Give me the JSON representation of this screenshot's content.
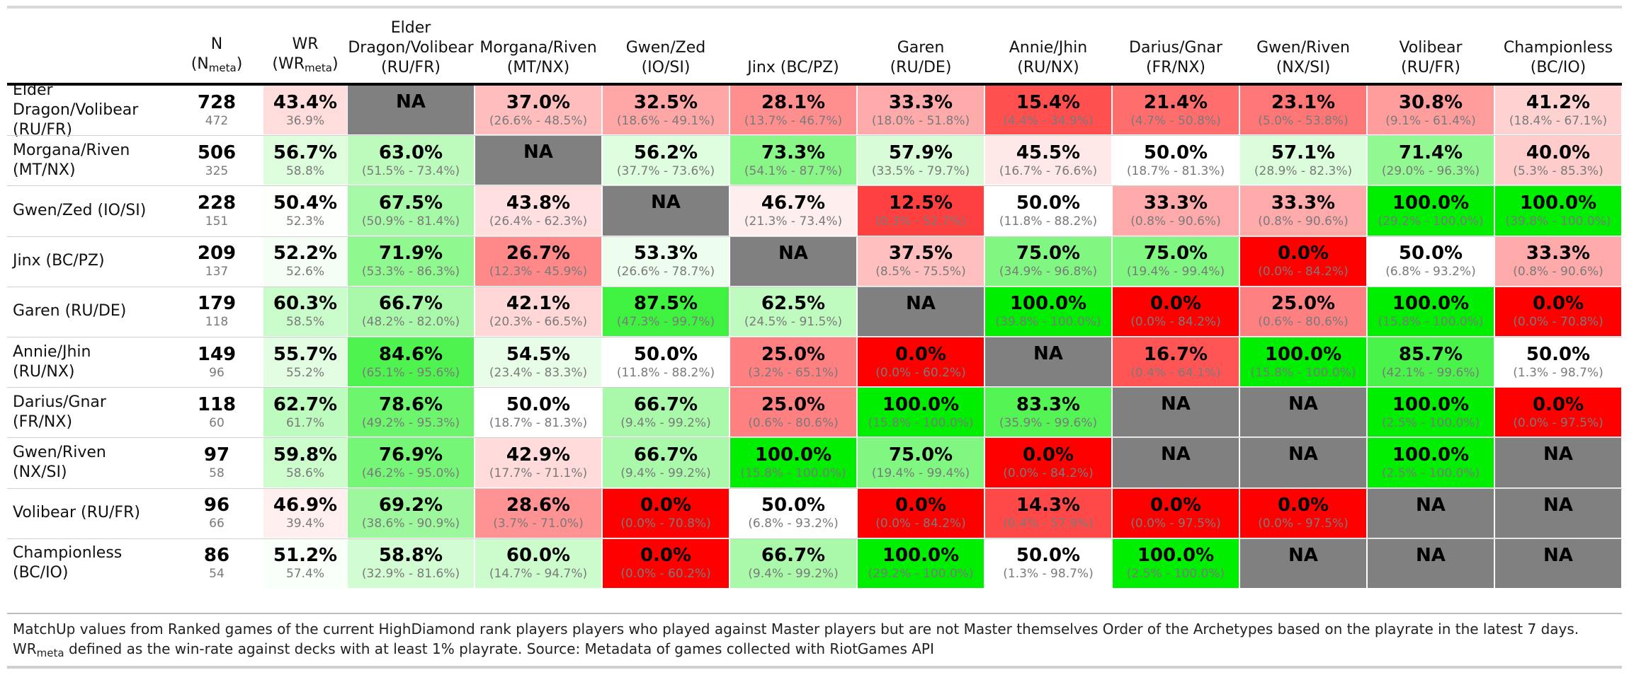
{
  "chart_data": {
    "type": "table",
    "columns": {
      "n": {
        "main": "N",
        "sub_base": "(N",
        "sub_sub": "meta",
        "sub_close": ")"
      },
      "wr": {
        "main": "WR",
        "sub_base": "(WR",
        "sub_sub": "meta",
        "sub_close": ")"
      },
      "opponents": [
        {
          "l1": "Elder",
          "l2": "Dragon/Volibear",
          "l3": "(RU/FR)"
        },
        {
          "l1": "",
          "l2": "Morgana/Riven",
          "l3": "(MT/NX)"
        },
        {
          "l1": "",
          "l2": "Gwen/Zed",
          "l3": "(IO/SI)"
        },
        {
          "l1": "",
          "l2": "",
          "l3": "Jinx (BC/PZ)"
        },
        {
          "l1": "",
          "l2": "Garen",
          "l3": "(RU/DE)"
        },
        {
          "l1": "",
          "l2": "Annie/Jhin",
          "l3": "(RU/NX)"
        },
        {
          "l1": "",
          "l2": "Darius/Gnar",
          "l3": "(FR/NX)"
        },
        {
          "l1": "",
          "l2": "Gwen/Riven",
          "l3": "(NX/SI)"
        },
        {
          "l1": "",
          "l2": "Volibear",
          "l3": "(RU/FR)"
        },
        {
          "l1": "",
          "l2": "Championless",
          "l3": "(BC/IO)"
        }
      ]
    },
    "rows": [
      {
        "label": [
          "Elder",
          "Dragon/Volibear",
          "(RU/FR)"
        ],
        "n": 728,
        "n_meta": 472,
        "wr": "43.4%",
        "wr_meta": "36.9%",
        "wr_value": 43.4,
        "cells": [
          {
            "value": "NA",
            "ci": ""
          },
          {
            "value": "37.0%",
            "ci": "(26.6% - 48.5%)",
            "num": 37.0
          },
          {
            "value": "32.5%",
            "ci": "(18.6% - 49.1%)",
            "num": 32.5
          },
          {
            "value": "28.1%",
            "ci": "(13.7% - 46.7%)",
            "num": 28.1
          },
          {
            "value": "33.3%",
            "ci": "(18.0% - 51.8%)",
            "num": 33.3
          },
          {
            "value": "15.4%",
            "ci": "(4.4% - 34.9%)",
            "num": 15.4
          },
          {
            "value": "21.4%",
            "ci": "(4.7% - 50.8%)",
            "num": 21.4
          },
          {
            "value": "23.1%",
            "ci": "(5.0% - 53.8%)",
            "num": 23.1
          },
          {
            "value": "30.8%",
            "ci": "(9.1% - 61.4%)",
            "num": 30.8
          },
          {
            "value": "41.2%",
            "ci": "(18.4% - 67.1%)",
            "num": 41.2
          }
        ]
      },
      {
        "label": [
          "Morgana/Riven",
          "(MT/NX)"
        ],
        "n": 506,
        "n_meta": 325,
        "wr": "56.7%",
        "wr_meta": "58.8%",
        "wr_value": 56.7,
        "cells": [
          {
            "value": "63.0%",
            "ci": "(51.5% - 73.4%)",
            "num": 63.0
          },
          {
            "value": "NA",
            "ci": ""
          },
          {
            "value": "56.2%",
            "ci": "(37.7% - 73.6%)",
            "num": 56.2
          },
          {
            "value": "73.3%",
            "ci": "(54.1% - 87.7%)",
            "num": 73.3
          },
          {
            "value": "57.9%",
            "ci": "(33.5% - 79.7%)",
            "num": 57.9
          },
          {
            "value": "45.5%",
            "ci": "(16.7% - 76.6%)",
            "num": 45.5
          },
          {
            "value": "50.0%",
            "ci": "(18.7% - 81.3%)",
            "num": 50.0
          },
          {
            "value": "57.1%",
            "ci": "(28.9% - 82.3%)",
            "num": 57.1
          },
          {
            "value": "71.4%",
            "ci": "(29.0% - 96.3%)",
            "num": 71.4
          },
          {
            "value": "40.0%",
            "ci": "(5.3% - 85.3%)",
            "num": 40.0
          }
        ]
      },
      {
        "label": [
          "Gwen/Zed (IO/SI)"
        ],
        "n": 228,
        "n_meta": 151,
        "wr": "50.4%",
        "wr_meta": "52.3%",
        "wr_value": 50.4,
        "cells": [
          {
            "value": "67.5%",
            "ci": "(50.9% - 81.4%)",
            "num": 67.5
          },
          {
            "value": "43.8%",
            "ci": "(26.4% - 62.3%)",
            "num": 43.8
          },
          {
            "value": "NA",
            "ci": ""
          },
          {
            "value": "46.7%",
            "ci": "(21.3% - 73.4%)",
            "num": 46.7
          },
          {
            "value": "12.5%",
            "ci": "(0.3% - 52.7%)",
            "num": 12.5
          },
          {
            "value": "50.0%",
            "ci": "(11.8% - 88.2%)",
            "num": 50.0
          },
          {
            "value": "33.3%",
            "ci": "(0.8% - 90.6%)",
            "num": 33.3
          },
          {
            "value": "33.3%",
            "ci": "(0.8% - 90.6%)",
            "num": 33.3
          },
          {
            "value": "100.0%",
            "ci": "(29.2% - 100.0%)",
            "num": 100.0
          },
          {
            "value": "100.0%",
            "ci": "(39.8% - 100.0%)",
            "num": 100.0
          }
        ]
      },
      {
        "label": [
          "Jinx (BC/PZ)"
        ],
        "n": 209,
        "n_meta": 137,
        "wr": "52.2%",
        "wr_meta": "52.6%",
        "wr_value": 52.2,
        "cells": [
          {
            "value": "71.9%",
            "ci": "(53.3% - 86.3%)",
            "num": 71.9
          },
          {
            "value": "26.7%",
            "ci": "(12.3% - 45.9%)",
            "num": 26.7
          },
          {
            "value": "53.3%",
            "ci": "(26.6% - 78.7%)",
            "num": 53.3
          },
          {
            "value": "NA",
            "ci": ""
          },
          {
            "value": "37.5%",
            "ci": "(8.5% - 75.5%)",
            "num": 37.5
          },
          {
            "value": "75.0%",
            "ci": "(34.9% - 96.8%)",
            "num": 75.0
          },
          {
            "value": "75.0%",
            "ci": "(19.4% - 99.4%)",
            "num": 75.0
          },
          {
            "value": "0.0%",
            "ci": "(0.0% - 84.2%)",
            "num": 0.0
          },
          {
            "value": "50.0%",
            "ci": "(6.8% - 93.2%)",
            "num": 50.0
          },
          {
            "value": "33.3%",
            "ci": "(0.8% - 90.6%)",
            "num": 33.3
          }
        ]
      },
      {
        "label": [
          "Garen (RU/DE)"
        ],
        "n": 179,
        "n_meta": 118,
        "wr": "60.3%",
        "wr_meta": "58.5%",
        "wr_value": 60.3,
        "cells": [
          {
            "value": "66.7%",
            "ci": "(48.2% - 82.0%)",
            "num": 66.7
          },
          {
            "value": "42.1%",
            "ci": "(20.3% - 66.5%)",
            "num": 42.1
          },
          {
            "value": "87.5%",
            "ci": "(47.3% - 99.7%)",
            "num": 87.5
          },
          {
            "value": "62.5%",
            "ci": "(24.5% - 91.5%)",
            "num": 62.5
          },
          {
            "value": "NA",
            "ci": ""
          },
          {
            "value": "100.0%",
            "ci": "(39.8% - 100.0%)",
            "num": 100.0
          },
          {
            "value": "0.0%",
            "ci": "(0.0% - 84.2%)",
            "num": 0.0
          },
          {
            "value": "25.0%",
            "ci": "(0.6% - 80.6%)",
            "num": 25.0
          },
          {
            "value": "100.0%",
            "ci": "(15.8% - 100.0%)",
            "num": 100.0
          },
          {
            "value": "0.0%",
            "ci": "(0.0% - 70.8%)",
            "num": 0.0
          }
        ]
      },
      {
        "label": [
          "Annie/Jhin",
          "(RU/NX)"
        ],
        "n": 149,
        "n_meta": 96,
        "wr": "55.7%",
        "wr_meta": "55.2%",
        "wr_value": 55.7,
        "cells": [
          {
            "value": "84.6%",
            "ci": "(65.1% - 95.6%)",
            "num": 84.6
          },
          {
            "value": "54.5%",
            "ci": "(23.4% - 83.3%)",
            "num": 54.5
          },
          {
            "value": "50.0%",
            "ci": "(11.8% - 88.2%)",
            "num": 50.0
          },
          {
            "value": "25.0%",
            "ci": "(3.2% - 65.1%)",
            "num": 25.0
          },
          {
            "value": "0.0%",
            "ci": "(0.0% - 60.2%)",
            "num": 0.0
          },
          {
            "value": "NA",
            "ci": ""
          },
          {
            "value": "16.7%",
            "ci": "(0.4% - 64.1%)",
            "num": 16.7
          },
          {
            "value": "100.0%",
            "ci": "(15.8% - 100.0%)",
            "num": 100.0
          },
          {
            "value": "85.7%",
            "ci": "(42.1% - 99.6%)",
            "num": 85.7
          },
          {
            "value": "50.0%",
            "ci": "(1.3% - 98.7%)",
            "num": 50.0
          }
        ]
      },
      {
        "label": [
          "Darius/Gnar",
          "(FR/NX)"
        ],
        "n": 118,
        "n_meta": 60,
        "wr": "62.7%",
        "wr_meta": "61.7%",
        "wr_value": 62.7,
        "cells": [
          {
            "value": "78.6%",
            "ci": "(49.2% - 95.3%)",
            "num": 78.6
          },
          {
            "value": "50.0%",
            "ci": "(18.7% - 81.3%)",
            "num": 50.0
          },
          {
            "value": "66.7%",
            "ci": "(9.4% - 99.2%)",
            "num": 66.7
          },
          {
            "value": "25.0%",
            "ci": "(0.6% - 80.6%)",
            "num": 25.0
          },
          {
            "value": "100.0%",
            "ci": "(15.8% - 100.0%)",
            "num": 100.0
          },
          {
            "value": "83.3%",
            "ci": "(35.9% - 99.6%)",
            "num": 83.3
          },
          {
            "value": "NA",
            "ci": ""
          },
          {
            "value": "NA",
            "ci": ""
          },
          {
            "value": "100.0%",
            "ci": "(2.5% - 100.0%)",
            "num": 100.0
          },
          {
            "value": "0.0%",
            "ci": "(0.0% - 97.5%)",
            "num": 0.0
          }
        ]
      },
      {
        "label": [
          "Gwen/Riven",
          "(NX/SI)"
        ],
        "n": 97,
        "n_meta": 58,
        "wr": "59.8%",
        "wr_meta": "58.6%",
        "wr_value": 59.8,
        "cells": [
          {
            "value": "76.9%",
            "ci": "(46.2% - 95.0%)",
            "num": 76.9
          },
          {
            "value": "42.9%",
            "ci": "(17.7% - 71.1%)",
            "num": 42.9
          },
          {
            "value": "66.7%",
            "ci": "(9.4% - 99.2%)",
            "num": 66.7
          },
          {
            "value": "100.0%",
            "ci": "(15.8% - 100.0%)",
            "num": 100.0
          },
          {
            "value": "75.0%",
            "ci": "(19.4% - 99.4%)",
            "num": 75.0
          },
          {
            "value": "0.0%",
            "ci": "(0.0% - 84.2%)",
            "num": 0.0
          },
          {
            "value": "NA",
            "ci": ""
          },
          {
            "value": "NA",
            "ci": ""
          },
          {
            "value": "100.0%",
            "ci": "(2.5% - 100.0%)",
            "num": 100.0
          },
          {
            "value": "NA",
            "ci": ""
          }
        ]
      },
      {
        "label": [
          "Volibear (RU/FR)"
        ],
        "n": 96,
        "n_meta": 66,
        "wr": "46.9%",
        "wr_meta": "39.4%",
        "wr_value": 46.9,
        "cells": [
          {
            "value": "69.2%",
            "ci": "(38.6% - 90.9%)",
            "num": 69.2
          },
          {
            "value": "28.6%",
            "ci": "(3.7% - 71.0%)",
            "num": 28.6
          },
          {
            "value": "0.0%",
            "ci": "(0.0% - 70.8%)",
            "num": 0.0
          },
          {
            "value": "50.0%",
            "ci": "(6.8% - 93.2%)",
            "num": 50.0
          },
          {
            "value": "0.0%",
            "ci": "(0.0% - 84.2%)",
            "num": 0.0
          },
          {
            "value": "14.3%",
            "ci": "(0.4% - 57.9%)",
            "num": 14.3
          },
          {
            "value": "0.0%",
            "ci": "(0.0% - 97.5%)",
            "num": 0.0
          },
          {
            "value": "0.0%",
            "ci": "(0.0% - 97.5%)",
            "num": 0.0
          },
          {
            "value": "NA",
            "ci": ""
          },
          {
            "value": "NA",
            "ci": ""
          }
        ]
      },
      {
        "label": [
          "Championless",
          "(BC/IO)"
        ],
        "n": 86,
        "n_meta": 54,
        "wr": "51.2%",
        "wr_meta": "57.4%",
        "wr_value": 51.2,
        "cells": [
          {
            "value": "58.8%",
            "ci": "(32.9% - 81.6%)",
            "num": 58.8
          },
          {
            "value": "60.0%",
            "ci": "(14.7% - 94.7%)",
            "num": 60.0
          },
          {
            "value": "0.0%",
            "ci": "(0.0% - 60.2%)",
            "num": 0.0
          },
          {
            "value": "66.7%",
            "ci": "(9.4% - 99.2%)",
            "num": 66.7
          },
          {
            "value": "100.0%",
            "ci": "(29.2% - 100.0%)",
            "num": 100.0
          },
          {
            "value": "50.0%",
            "ci": "(1.3% - 98.7%)",
            "num": 50.0
          },
          {
            "value": "100.0%",
            "ci": "(2.5% - 100.0%)",
            "num": 100.0
          },
          {
            "value": "NA",
            "ci": ""
          },
          {
            "value": "NA",
            "ci": ""
          },
          {
            "value": "NA",
            "ci": ""
          }
        ]
      }
    ]
  },
  "caption": {
    "line1": "MatchUp values from Ranked games of the current HighDiamond rank players players who played against Master players but are not Master themselves Order of the Archetypes based on the playrate in the latest 7 days.",
    "line2_base": "WR",
    "line2_sub": "meta",
    "line2_rest": " defined as the win-rate against decks with at least 1% playrate. Source: Metadata of games collected with RiotGames API"
  },
  "colors": {
    "na": "#808080",
    "high": "#00ee00",
    "low": "#ff0000",
    "mid": "#ffffff",
    "ci_text": "#7a7a7a"
  }
}
